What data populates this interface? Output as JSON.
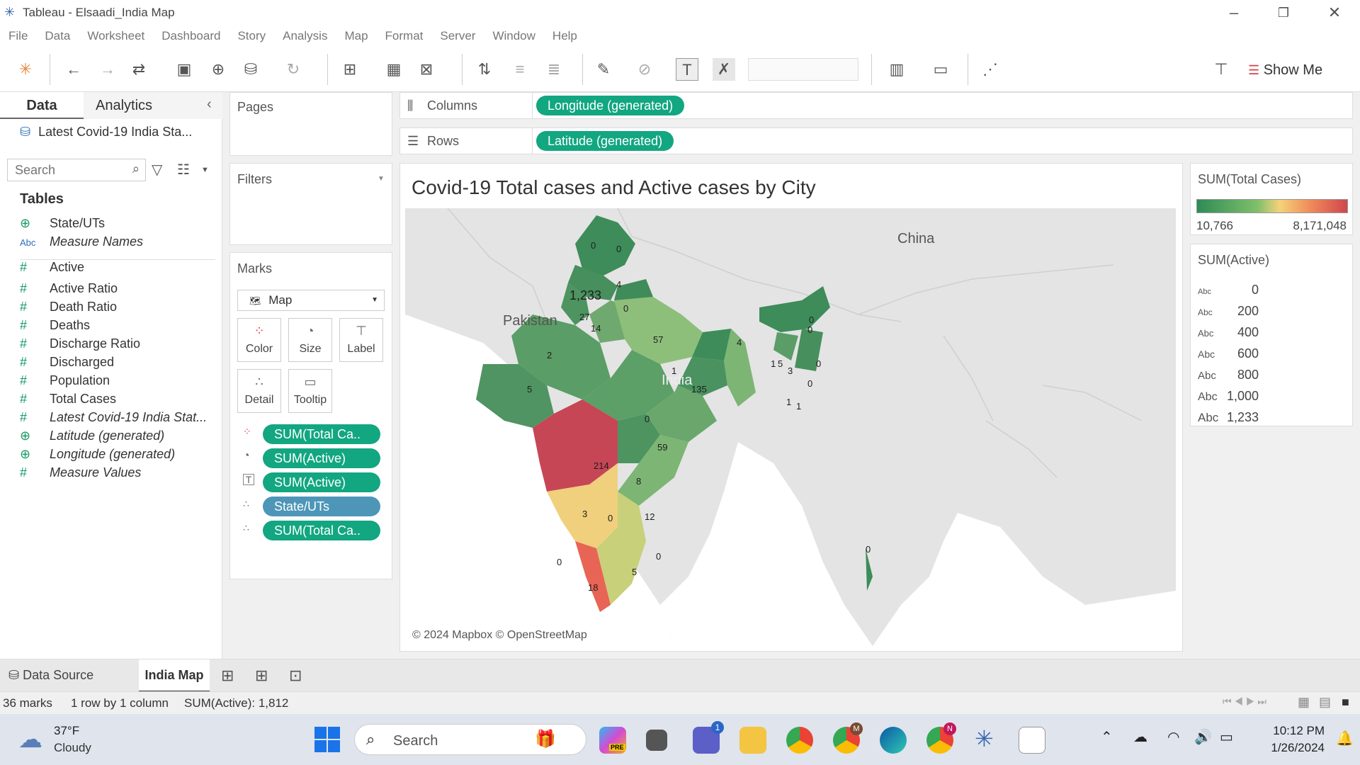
{
  "window": {
    "title": "Tableau - Elsaadi_India Map"
  },
  "menu": [
    "File",
    "Data",
    "Worksheet",
    "Dashboard",
    "Story",
    "Analysis",
    "Map",
    "Format",
    "Server",
    "Window",
    "Help"
  ],
  "toolbar": {
    "show_me": "Show Me"
  },
  "data_pane": {
    "tab_data": "Data",
    "tab_analytics": "Analytics",
    "datasource": "Latest Covid-19 India Sta...",
    "search_placeholder": "Search",
    "tables_label": "Tables",
    "fields": [
      {
        "name": "State/UTs",
        "type": "geo",
        "italic": false
      },
      {
        "name": "Measure Names",
        "type": "abc",
        "italic": true
      },
      {
        "name": "Active",
        "type": "measure",
        "italic": false
      },
      {
        "name": "Active Ratio",
        "type": "measure",
        "italic": false
      },
      {
        "name": "Death Ratio",
        "type": "measure",
        "italic": false
      },
      {
        "name": "Deaths",
        "type": "measure",
        "italic": false
      },
      {
        "name": "Discharge Ratio",
        "type": "measure",
        "italic": false
      },
      {
        "name": "Discharged",
        "type": "measure",
        "italic": false
      },
      {
        "name": "Population",
        "type": "measure",
        "italic": false
      },
      {
        "name": "Total Cases",
        "type": "measure",
        "italic": false
      },
      {
        "name": "Latest Covid-19 India Stat...",
        "type": "measure",
        "italic": true
      },
      {
        "name": "Latitude (generated)",
        "type": "geo",
        "italic": true
      },
      {
        "name": "Longitude (generated)",
        "type": "geo",
        "italic": true
      },
      {
        "name": "Measure Values",
        "type": "measure",
        "italic": true
      }
    ]
  },
  "shelves": {
    "pages": "Pages",
    "filters": "Filters",
    "columns_label": "Columns",
    "rows_label": "Rows",
    "columns_pill": "Longitude (generated)",
    "rows_pill": "Latitude (generated)"
  },
  "marks": {
    "title": "Marks",
    "type": "Map",
    "buttons": [
      "Color",
      "Size",
      "Label",
      "Detail",
      "Tooltip"
    ],
    "pills": [
      "SUM(Total Ca..",
      "SUM(Active)",
      "SUM(Active)",
      "State/UTs",
      "SUM(Total Ca.."
    ]
  },
  "view": {
    "title": "Covid-19 Total cases and Active cases by City",
    "attribution": "© 2024 Mapbox © OpenStreetMap",
    "country_labels": [
      "China",
      "Pakistan",
      "India"
    ],
    "state_labels": [
      "0",
      "0",
      "4",
      "1,233",
      "0",
      "27",
      "14",
      "57",
      "2",
      "5",
      "1",
      "135",
      "4",
      "0",
      "5",
      "3",
      "0",
      "0",
      "1",
      "1",
      "1",
      "0",
      "59",
      "0",
      "214",
      "8",
      "3",
      "12",
      "0",
      "0",
      "18",
      "5",
      "0",
      "0"
    ]
  },
  "legend_color": {
    "title": "SUM(Total Cases)",
    "min": "10,766",
    "max": "8,171,048",
    "colors": {
      "low": "#2e8b57",
      "mid": "#f4d27a",
      "high": "#d0464e"
    }
  },
  "legend_size": {
    "title": "SUM(Active)",
    "abc": "Abc",
    "values": [
      "0",
      "200",
      "400",
      "600",
      "800",
      "1,000",
      "1,233"
    ]
  },
  "bottom_tabs": {
    "data_source": "Data Source",
    "sheet": "India Map"
  },
  "status": {
    "marks": "36 marks",
    "dims": "1 row by 1 column",
    "sum": "SUM(Active): 1,812"
  },
  "taskbar": {
    "temp": "37°F",
    "weather": "Cloudy",
    "search": "Search",
    "time": "10:12 PM",
    "date": "1/26/2024",
    "badge1": "1",
    "badge_m": "M",
    "badge_n": "N",
    "pre": "PRE"
  }
}
